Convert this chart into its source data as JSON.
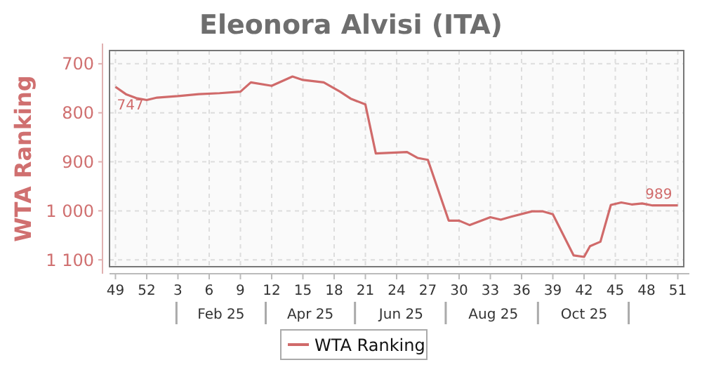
{
  "chart_data": {
    "type": "line",
    "title": "Eleonora Alvisi (ITA)",
    "ylabel": "WTA Ranking",
    "x": [
      "2024-12-02",
      "2024-12-09",
      "2024-12-16",
      "2024-12-23",
      "2024-12-30",
      "2025-01-13",
      "2025-01-27",
      "2025-02-10",
      "2025-02-24",
      "2025-03-03",
      "2025-03-17",
      "2025-03-31",
      "2025-04-07",
      "2025-04-21",
      "2025-05-02",
      "2025-05-09",
      "2025-05-19",
      "2025-05-26",
      "2025-06-16",
      "2025-06-23",
      "2025-06-30",
      "2025-07-14",
      "2025-07-21",
      "2025-07-28",
      "2025-08-11",
      "2025-08-18",
      "2025-08-25",
      "2025-09-08",
      "2025-09-15",
      "2025-09-22",
      "2025-10-06",
      "2025-10-13",
      "2025-10-17",
      "2025-10-24",
      "2025-10-31",
      "2025-11-07",
      "2025-11-14",
      "2025-11-21",
      "2025-11-28",
      "2025-12-15"
    ],
    "series": [
      {
        "name": "WTA Ranking",
        "color": "#d06a6a",
        "values": [
          747,
          762,
          770,
          774,
          769,
          766,
          762,
          760,
          757,
          738,
          745,
          726,
          733,
          738,
          757,
          771,
          783,
          883,
          880,
          892,
          896,
          1020,
          1020,
          1029,
          1013,
          1018,
          1012,
          1001,
          1001,
          1007,
          1091,
          1094,
          1072,
          1063,
          988,
          983,
          987,
          985,
          989,
          989
        ]
      }
    ],
    "xlim": [
      "2024-11-28",
      "2025-12-19"
    ],
    "xticks": [
      {
        "value": "2024-12-02",
        "label": "49"
      },
      {
        "value": "2024-12-23",
        "label": "52"
      },
      {
        "value": "2025-01-13",
        "label": "3"
      },
      {
        "value": "2025-02-03",
        "label": "6"
      },
      {
        "value": "2025-02-24",
        "label": "9"
      },
      {
        "value": "2025-03-17",
        "label": "12"
      },
      {
        "value": "2025-04-07",
        "label": "15"
      },
      {
        "value": "2025-04-28",
        "label": "18"
      },
      {
        "value": "2025-05-19",
        "label": "21"
      },
      {
        "value": "2025-06-09",
        "label": "24"
      },
      {
        "value": "2025-06-30",
        "label": "27"
      },
      {
        "value": "2025-07-21",
        "label": "30"
      },
      {
        "value": "2025-08-11",
        "label": "33"
      },
      {
        "value": "2025-09-01",
        "label": "36"
      },
      {
        "value": "2025-09-22",
        "label": "39"
      },
      {
        "value": "2025-10-13",
        "label": "42"
      },
      {
        "value": "2025-11-03",
        "label": "45"
      },
      {
        "value": "2025-11-24",
        "label": "48"
      },
      {
        "value": "2025-12-15",
        "label": "51"
      }
    ],
    "x2lim": [
      "2024-11-28",
      "2025-12-19"
    ],
    "x2ticks": [
      {
        "value": "2025-02-11",
        "label": "Feb 25"
      },
      {
        "value": "2025-04-12",
        "label": "Apr 25"
      },
      {
        "value": "2025-06-12",
        "label": "Jun 25"
      },
      {
        "value": "2025-08-13",
        "label": "Aug 25"
      },
      {
        "value": "2025-10-13",
        "label": "Oct 25"
      }
    ],
    "ylim": [
      1114,
      673
    ],
    "yticks": [
      700,
      800,
      900,
      {
        "value": 1000,
        "label": "1 000"
      },
      {
        "value": 1100,
        "label": "1 100"
      }
    ],
    "grid": true,
    "legend": "bottom",
    "marker": "none",
    "line_style": "solid",
    "annotations": [
      {
        "text": "747",
        "x": "2024-12-02",
        "y": 747
      },
      {
        "text": "989",
        "x": "2025-12-15",
        "y": 989
      }
    ]
  }
}
